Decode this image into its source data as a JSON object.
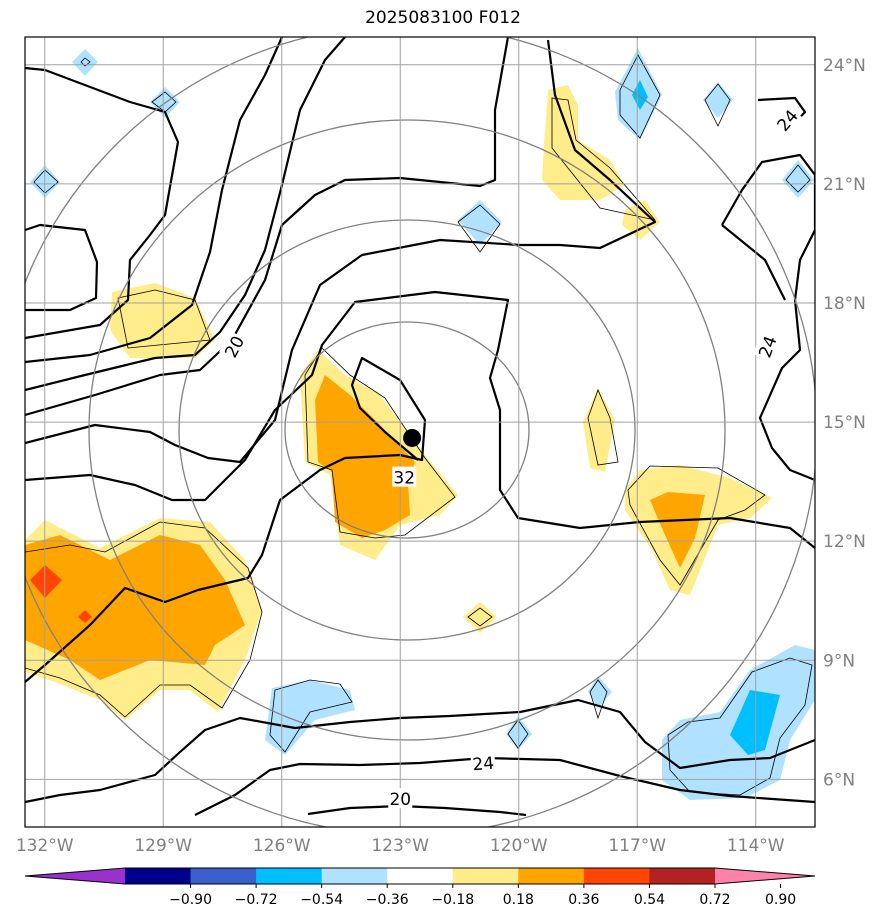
{
  "title": "2025083100 F012",
  "map": {
    "lon_range": [
      -132.5,
      -112.5
    ],
    "lat_range": [
      4.8,
      24.7
    ],
    "lon_ticks": [
      {
        "value": -132,
        "label": "132°W"
      },
      {
        "value": -129,
        "label": "129°W"
      },
      {
        "value": -126,
        "label": "126°W"
      },
      {
        "value": -123,
        "label": "123°W"
      },
      {
        "value": -120,
        "label": "120°W"
      },
      {
        "value": -117,
        "label": "117°W"
      },
      {
        "value": -114,
        "label": "114°W"
      }
    ],
    "lat_ticks": [
      {
        "value": 6,
        "label": "6°N"
      },
      {
        "value": 9,
        "label": "9°N"
      },
      {
        "value": 12,
        "label": "12°N"
      },
      {
        "value": 15,
        "label": "15°N"
      },
      {
        "value": 18,
        "label": "18°N"
      },
      {
        "value": 21,
        "label": "21°N"
      },
      {
        "value": 24,
        "label": "24°N"
      }
    ],
    "storm_center": {
      "lon": -122.7,
      "lat": 14.6
    },
    "contour_labels": [
      {
        "text": "20",
        "lon": -127.2,
        "lat": 16.9,
        "rotate": -62
      },
      {
        "text": "32",
        "lon": -122.9,
        "lat": 13.6,
        "rotate": 0
      },
      {
        "text": "24",
        "lon": -120.9,
        "lat": 6.4,
        "rotate": -5
      },
      {
        "text": "20",
        "lon": -123.0,
        "lat": 5.5,
        "rotate": 0
      },
      {
        "text": "24",
        "lon": -113.2,
        "lat": 22.6,
        "rotate": -50
      },
      {
        "text": "24",
        "lon": -113.7,
        "lat": 16.9,
        "rotate": -70
      }
    ]
  },
  "colorbar": {
    "colors": [
      "#9932cc",
      "#00008b",
      "#3a5fcd",
      "#00bfff",
      "#b0e2ff",
      "#ffffff",
      "#ffec8b",
      "#ffa500",
      "#ff4500",
      "#b22222",
      "#ff82ab"
    ],
    "tick_labels": [
      "−0.90",
      "−0.72",
      "−0.54",
      "−0.36",
      "−0.18",
      "0.18",
      "0.36",
      "0.54",
      "0.72",
      "0.90"
    ]
  }
}
